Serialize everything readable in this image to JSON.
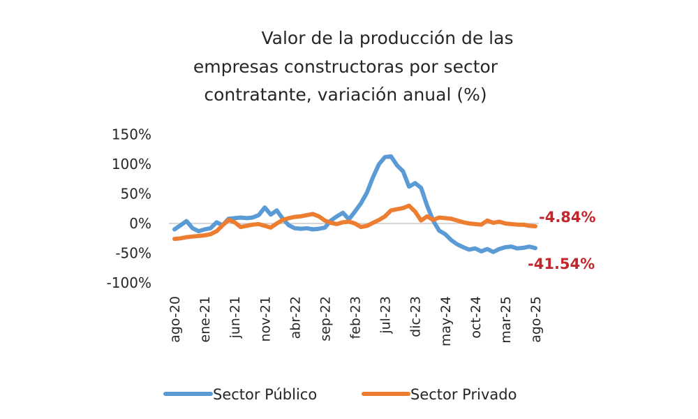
{
  "chart_data": {
    "type": "line",
    "title": "Valor de la producción de las empresas constructoras por sector contratante, variación anual (%)",
    "title_lines": [
      "Valor de la producción de las",
      "empresas constructoras por sector",
      "contratante, variación anual (%)"
    ],
    "xlabel": "",
    "ylabel": "",
    "ylim": [
      -100,
      150
    ],
    "yticks": [
      150,
      100,
      50,
      0,
      -50,
      -100
    ],
    "ytick_labels": [
      "150%",
      "100%",
      "50%",
      "0%",
      "-50%",
      "-100%"
    ],
    "x_start": "ago-20",
    "x_end": "ago-25",
    "x_tick_every_months": 5,
    "xtick_labels": [
      "ago-20",
      "ene-21",
      "jun-21",
      "nov-21",
      "abr-22",
      "sep-22",
      "feb-23",
      "jul-23",
      "dic-23",
      "may-24",
      "oct-24",
      "mar-25",
      "ago-25"
    ],
    "grid": "zero-line only",
    "legend_position": "bottom",
    "series": [
      {
        "name": "Sector Público",
        "color": "#5b9bd5",
        "values": [
          -10,
          -3,
          4,
          -8,
          -13,
          -10,
          -8,
          2,
          -3,
          8,
          9,
          10,
          9,
          10,
          14,
          27,
          15,
          22,
          8,
          -3,
          -8,
          -9,
          -8,
          -10,
          -9,
          -7,
          5,
          12,
          18,
          7,
          20,
          34,
          52,
          78,
          100,
          112,
          113,
          98,
          88,
          62,
          68,
          60,
          30,
          5,
          -12,
          -18,
          -28,
          -35,
          -40,
          -44,
          -42,
          -47,
          -43,
          -48,
          -43,
          -40,
          -39,
          -42,
          -41,
          -39,
          -41.54
        ],
        "end_label": "-41.54%"
      },
      {
        "name": "Sector Privado",
        "color": "#ed7d31",
        "values": [
          -26,
          -25,
          -23,
          -22,
          -21,
          -20,
          -18,
          -13,
          -3,
          6,
          2,
          -6,
          -4,
          -2,
          -1,
          -4,
          -7,
          0,
          6,
          9,
          11,
          12,
          14,
          16,
          12,
          5,
          1,
          -1,
          2,
          3,
          0,
          -6,
          -4,
          1,
          6,
          12,
          22,
          24,
          26,
          30,
          20,
          5,
          12,
          6,
          10,
          9,
          8,
          5,
          2,
          0,
          -1,
          -2,
          5,
          1,
          3,
          0,
          -1,
          -2,
          -2,
          -4,
          -4.84
        ],
        "end_label": "-4.84%"
      }
    ],
    "annotation_color": "#c0272d"
  }
}
